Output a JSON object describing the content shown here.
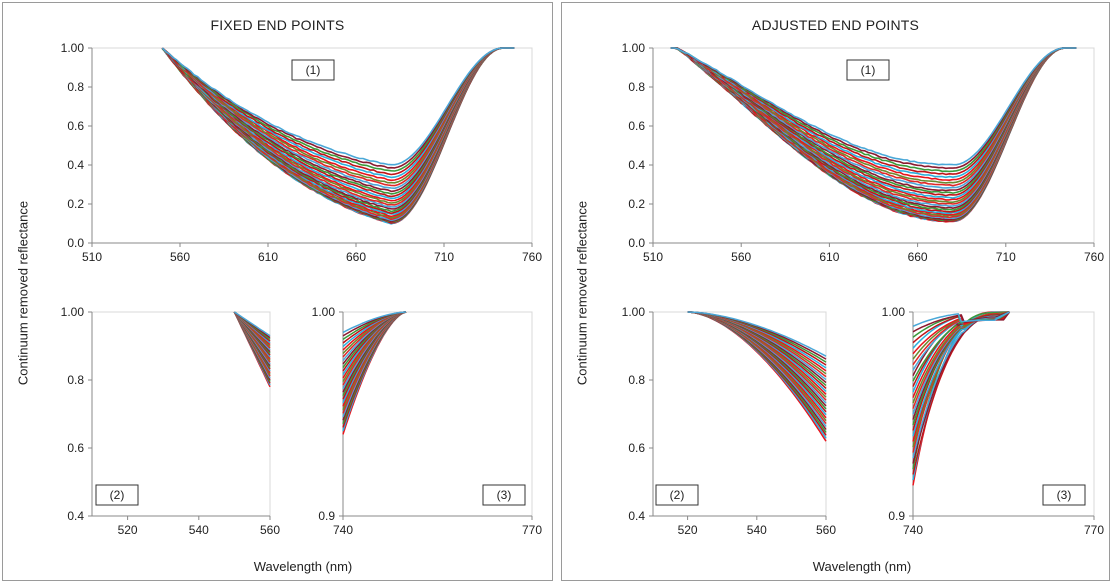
{
  "figure": {
    "ylabel": "Continuum removed reflectance",
    "xlabel": "Wavelength (nm)",
    "colors": [
      "#e8141c",
      "#2bb0dc",
      "#c0141a",
      "#3a9a3a",
      "#8b1a30",
      "#4aa8d8",
      "#e02828",
      "#6a8a30"
    ]
  },
  "panels": [
    {
      "title": "FIXED END POINTS",
      "subplots": [
        {
          "box": "(1)",
          "xticks": [
            "510",
            "560",
            "610",
            "660",
            "710",
            "760"
          ],
          "yticks": [
            "0.0",
            "0.2",
            "0.4",
            "0.6",
            "0.8",
            "1.00"
          ]
        },
        {
          "box": "(2)",
          "xticks": [
            "520",
            "540",
            "560"
          ],
          "yticks": [
            "0.4",
            "0.6",
            "0.8",
            "1.00"
          ]
        },
        {
          "box": "(3)",
          "xticks": [
            "740",
            "770"
          ],
          "yticks": [
            "0.9",
            "1.00"
          ]
        }
      ]
    },
    {
      "title": "ADJUSTED END POINTS",
      "subplots": [
        {
          "box": "(1)",
          "xticks": [
            "510",
            "560",
            "610",
            "660",
            "710",
            "760"
          ],
          "yticks": [
            "0.0",
            "0.2",
            "0.4",
            "0.6",
            "0.8",
            "1.00"
          ]
        },
        {
          "box": "(2)",
          "xticks": [
            "520",
            "540",
            "560"
          ],
          "yticks": [
            "0.4",
            "0.6",
            "0.8",
            "1.00"
          ]
        },
        {
          "box": "(3)",
          "xticks": [
            "740",
            "770"
          ],
          "yticks": [
            "0.9",
            "1.00"
          ]
        }
      ]
    }
  ],
  "chart_data": [
    {
      "type": "line",
      "title": "FIXED END POINTS",
      "label": "(1)",
      "xlabel": "Wavelength (nm)",
      "ylabel": "Continuum removed reflectance",
      "xlim": [
        510,
        760
      ],
      "ylim": [
        0,
        1
      ],
      "grid": false,
      "curve_count": 30,
      "min_range": [
        0.1,
        0.4
      ],
      "min_wavelength": 680,
      "band_start": 550,
      "band_end": 750
    },
    {
      "type": "line",
      "title": "FIXED END POINTS",
      "label": "(2)",
      "xlabel": "Wavelength (nm)",
      "ylabel": "Continuum removed reflectance",
      "xlim": [
        510,
        560
      ],
      "ylim": [
        0.4,
        1.0
      ],
      "grid": false,
      "curve_count": 30,
      "x_start": 550,
      "y_at_560_range": [
        0.78,
        0.93
      ]
    },
    {
      "type": "line",
      "title": "FIXED END POINTS",
      "label": "(3)",
      "xlabel": "Wavelength (nm)",
      "ylabel": "Continuum removed reflectance",
      "xlim": [
        740,
        770
      ],
      "ylim": [
        0.9,
        1.0
      ],
      "grid": false,
      "curve_count": 30,
      "x_end": 750,
      "y_at_740_range": [
        0.94,
        0.99
      ]
    },
    {
      "type": "line",
      "title": "ADJUSTED END POINTS",
      "label": "(1)",
      "xlabel": "Wavelength (nm)",
      "ylabel": "Continuum removed reflectance",
      "xlim": [
        510,
        760
      ],
      "ylim": [
        0,
        1
      ],
      "grid": false,
      "curve_count": 30,
      "min_range": [
        0.11,
        0.4
      ],
      "min_wavelength": 680,
      "band_start": 520,
      "band_end": 750
    },
    {
      "type": "line",
      "title": "ADJUSTED END POINTS",
      "label": "(2)",
      "xlabel": "Wavelength (nm)",
      "ylabel": "Continuum removed reflectance",
      "xlim": [
        510,
        560
      ],
      "ylim": [
        0.4,
        1.0
      ],
      "grid": false,
      "curve_count": 30,
      "x_start": 520,
      "y_at_560_range": [
        0.62,
        0.87
      ]
    },
    {
      "type": "line",
      "title": "ADJUSTED END POINTS",
      "label": "(3)",
      "xlabel": "Wavelength (nm)",
      "ylabel": "Continuum removed reflectance",
      "xlim": [
        740,
        770
      ],
      "ylim": [
        0.9,
        1.0
      ],
      "grid": false,
      "curve_count": 30,
      "x_end": 756,
      "y_at_740_range": [
        0.915,
        0.993
      ]
    }
  ]
}
